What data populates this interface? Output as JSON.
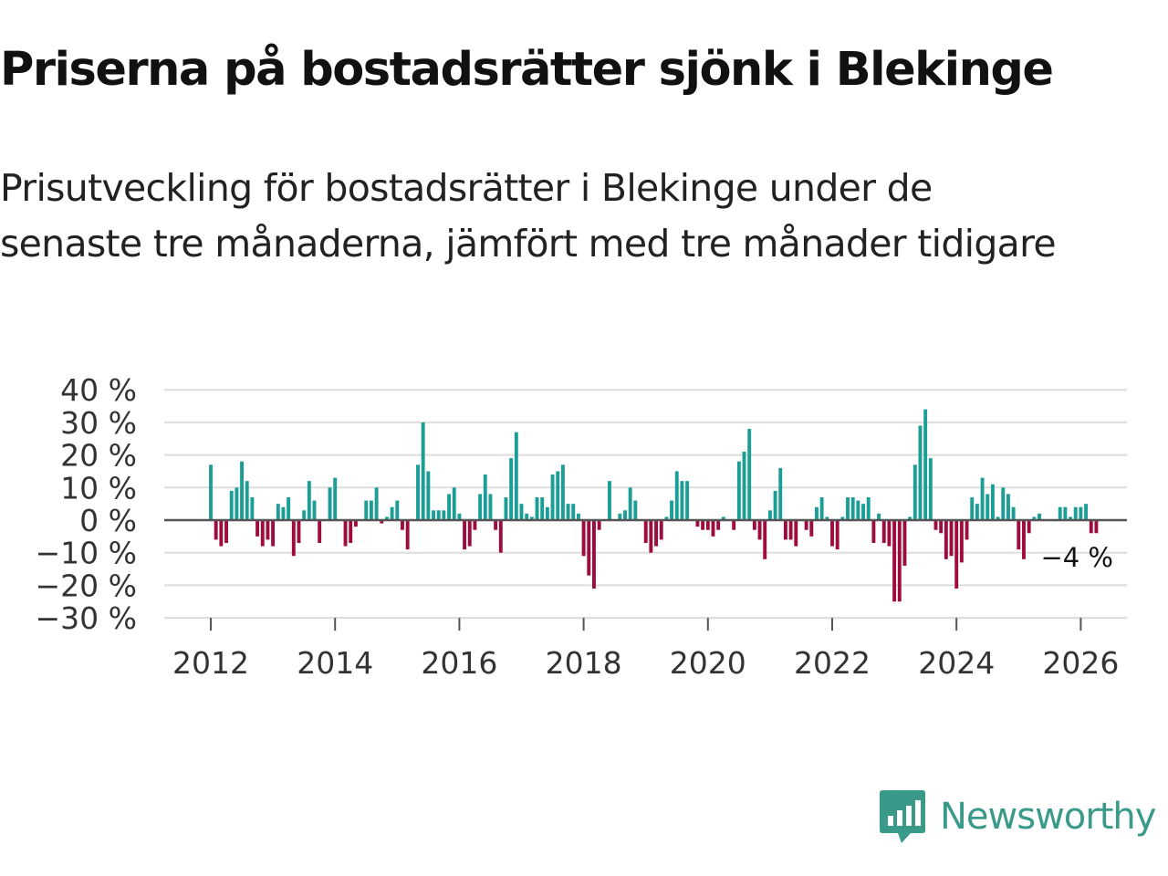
{
  "chart_data": {
    "type": "bar",
    "title": "Priserna på bostadsrätter sjönk i Blekinge",
    "subtitle": "Prisutveckling för bostadsrätter i Blekinge under de senaste tre månaderna, jämfört med tre månader tidigare",
    "xlabel": "",
    "ylabel": "",
    "x_start": 2012.0,
    "x_step": 0.0833333,
    "ylim": [
      -30,
      40
    ],
    "y_ticks": [
      40,
      30,
      20,
      10,
      0,
      -10,
      -20,
      -30
    ],
    "y_tick_labels": [
      "40 %",
      "30 %",
      "20 %",
      "10 %",
      "0 %",
      "−10 %",
      "−20 %",
      "−30 %"
    ],
    "x_ticks": [
      2012,
      2014,
      2016,
      2018,
      2020,
      2022,
      2024,
      2026
    ],
    "x_tick_labels": [
      "2012",
      "2014",
      "2016",
      "2018",
      "2020",
      "2022",
      "2024",
      "2026"
    ],
    "values": [
      17,
      -6,
      -8,
      -7,
      9,
      10,
      18,
      12,
      7,
      -5,
      -8,
      -6,
      -8,
      5,
      4,
      7,
      -11,
      -7,
      3,
      12,
      6,
      -7,
      0,
      10,
      13,
      0,
      -8,
      -7,
      -2,
      0,
      6,
      6,
      10,
      -1,
      1,
      4,
      6,
      -3,
      -9,
      0,
      17,
      30,
      15,
      3,
      3,
      3,
      8,
      10,
      2,
      -9,
      -8,
      -3,
      8,
      14,
      8,
      -3,
      -10,
      7,
      19,
      27,
      5,
      2,
      1,
      7,
      7,
      4,
      14,
      15,
      17,
      5,
      5,
      2,
      -11,
      -17,
      -21,
      -3,
      0,
      12,
      0,
      2,
      3,
      10,
      6,
      0,
      -7,
      -10,
      -8,
      -6,
      1,
      6,
      15,
      12,
      12,
      0,
      -2,
      -3,
      -3,
      -5,
      -3,
      1,
      0,
      -3,
      18,
      21,
      28,
      -3,
      -6,
      -12,
      3,
      9,
      16,
      -6,
      -6,
      -8,
      0,
      -3,
      -5,
      4,
      7,
      1,
      -8,
      -9,
      1,
      7,
      7,
      6,
      5,
      7,
      -7,
      2,
      -7,
      -8,
      -25,
      -25,
      -14,
      1,
      17,
      29,
      34,
      19,
      -3,
      -4,
      -12,
      -11,
      -21,
      -13,
      -6,
      7,
      5,
      13,
      8,
      11,
      1,
      10,
      8,
      4,
      -9,
      -12,
      -4,
      1,
      2,
      0,
      0,
      0,
      4,
      4,
      1,
      4,
      4,
      5,
      -4,
      -4
    ],
    "last_value_label": "−4 %",
    "colors": {
      "positive": "#1a9e96",
      "negative": "#9e0c3e",
      "grid": "#dddddd",
      "zero_line": "#555555",
      "axis_text": "#333333"
    }
  },
  "branding": {
    "name": "Newsworthy",
    "color": "#3a9a8a"
  }
}
